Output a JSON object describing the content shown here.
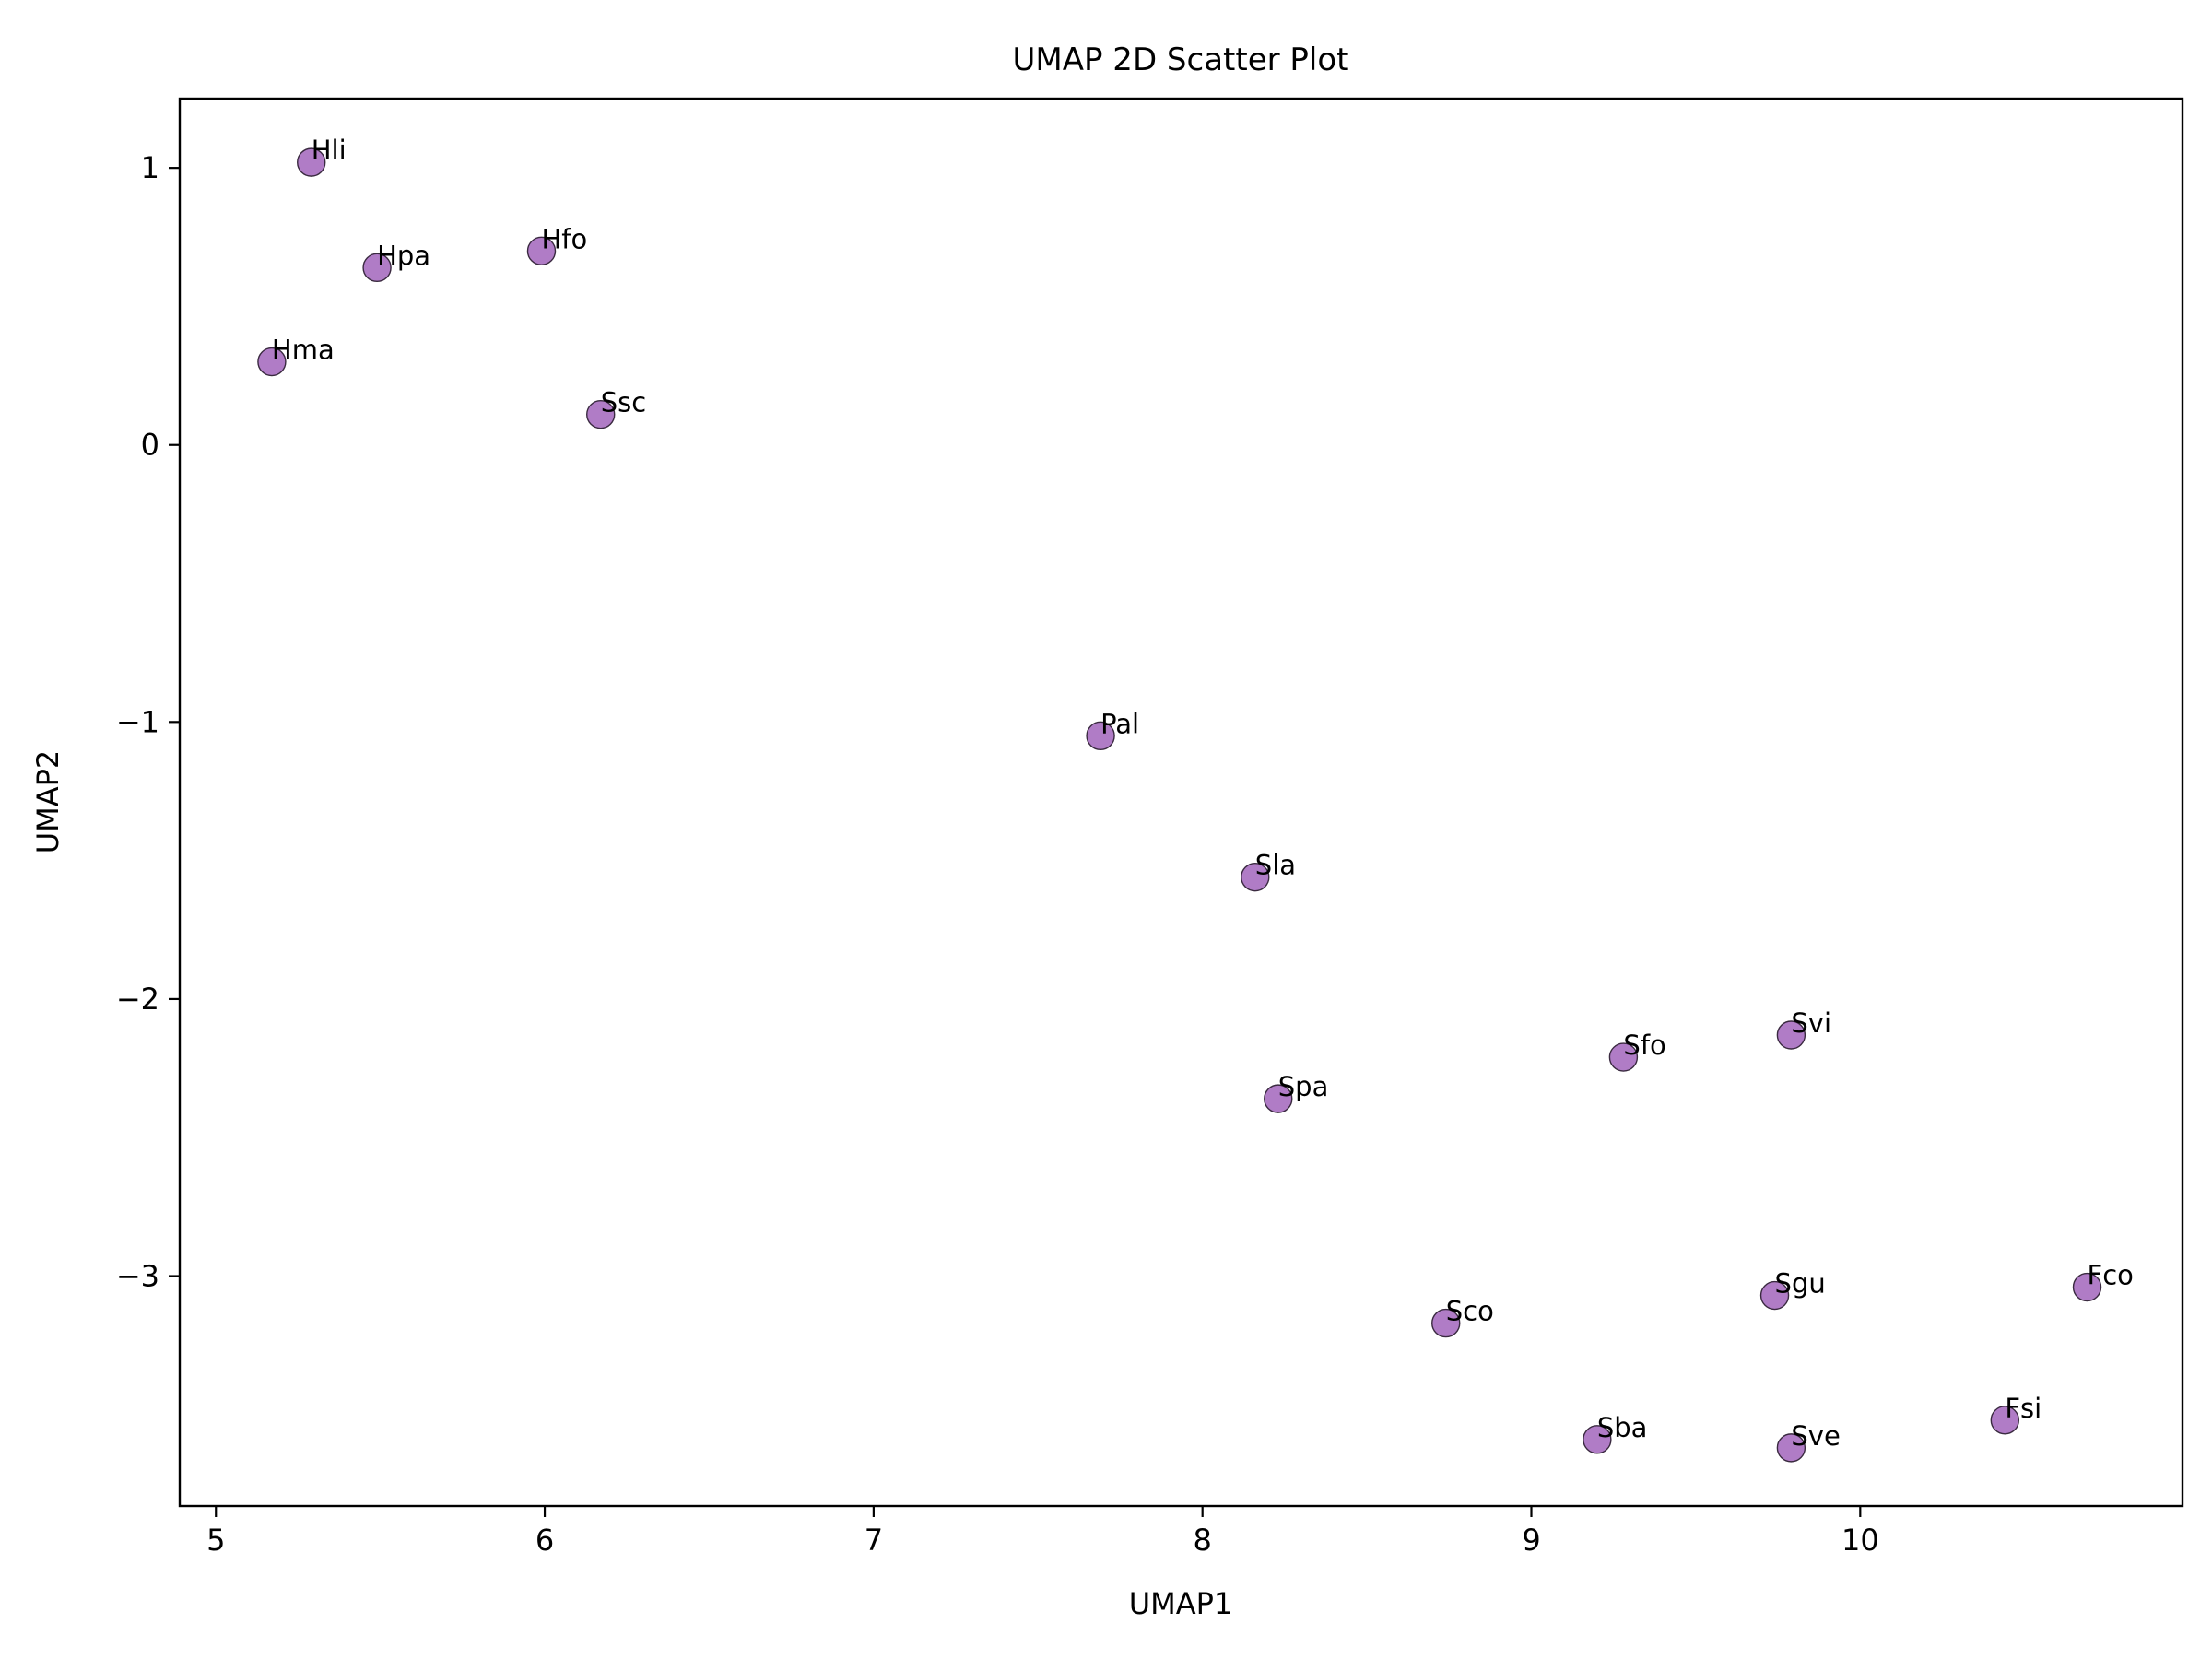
{
  "chart_data": {
    "type": "scatter",
    "title": "UMAP 2D Scatter Plot",
    "xlabel": "UMAP1",
    "ylabel": "UMAP2",
    "xlim": [
      4.89,
      10.98
    ],
    "ylim": [
      -3.83,
      1.25
    ],
    "xticks": [
      5,
      6,
      7,
      8,
      9,
      10
    ],
    "yticks": [
      1,
      0,
      -1,
      -2,
      -3
    ],
    "xtick_labels": [
      "5",
      "6",
      "7",
      "8",
      "9",
      "10"
    ],
    "ytick_labels": [
      "1",
      "0",
      "−1",
      "−2",
      "−3"
    ],
    "grid": false,
    "marker_color": "#b07cc6",
    "marker_edge_color": "#3a2a40",
    "points": [
      {
        "label": "Hli",
        "x": 5.29,
        "y": 1.02
      },
      {
        "label": "Hpa",
        "x": 5.49,
        "y": 0.64
      },
      {
        "label": "Hfo",
        "x": 5.99,
        "y": 0.7
      },
      {
        "label": "Hma",
        "x": 5.17,
        "y": 0.3
      },
      {
        "label": "Ssc",
        "x": 6.17,
        "y": 0.11
      },
      {
        "label": "Pal",
        "x": 7.69,
        "y": -1.05
      },
      {
        "label": "Sla",
        "x": 8.16,
        "y": -1.56
      },
      {
        "label": "Svi",
        "x": 9.79,
        "y": -2.13
      },
      {
        "label": "Sfo",
        "x": 9.28,
        "y": -2.21
      },
      {
        "label": "Spa",
        "x": 8.23,
        "y": -2.36
      },
      {
        "label": "Fco",
        "x": 10.69,
        "y": -3.04
      },
      {
        "label": "Sgu",
        "x": 9.74,
        "y": -3.07
      },
      {
        "label": "Sco",
        "x": 8.74,
        "y": -3.17
      },
      {
        "label": "Fsi",
        "x": 10.44,
        "y": -3.52
      },
      {
        "label": "Sba",
        "x": 9.2,
        "y": -3.59
      },
      {
        "label": "Sve",
        "x": 9.79,
        "y": -3.62
      }
    ]
  }
}
